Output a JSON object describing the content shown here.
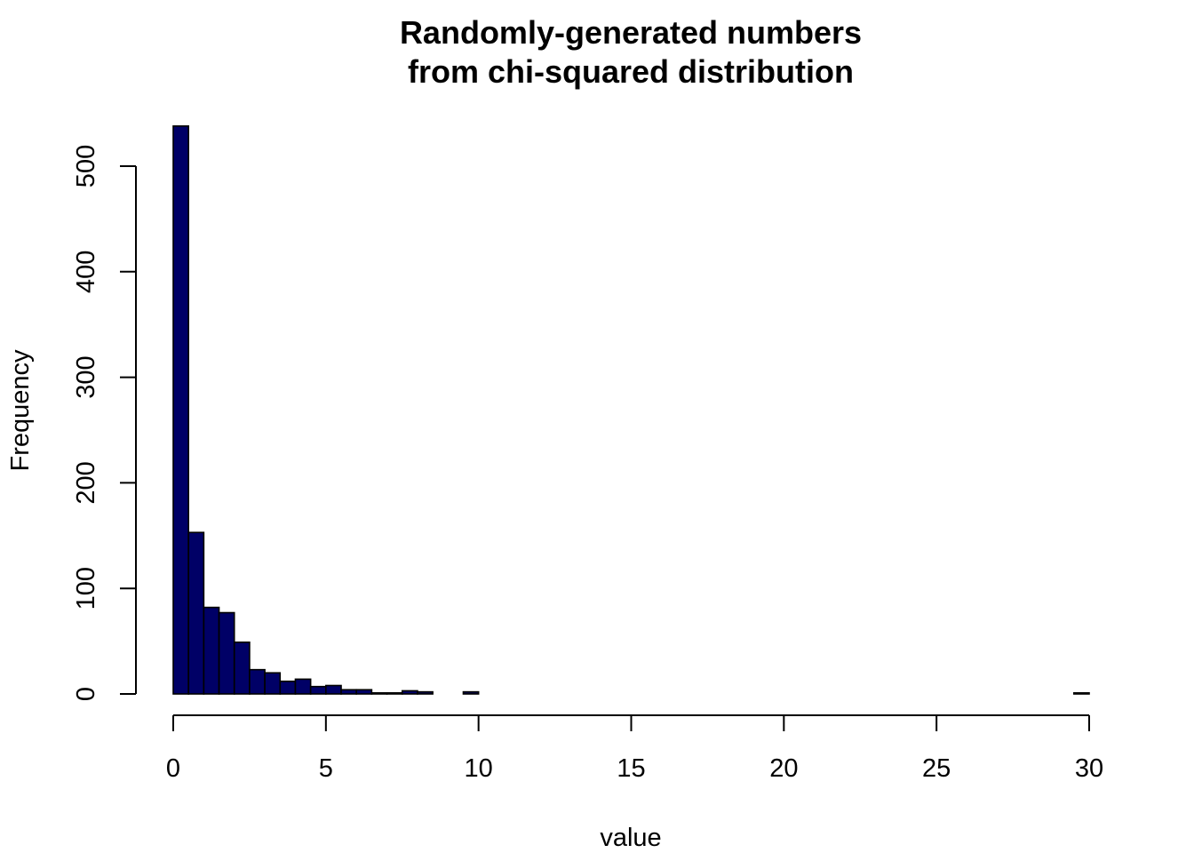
{
  "chart_data": {
    "type": "bar",
    "title_lines": [
      "Randomly-generated numbers",
      "from chi-squared distribution"
    ],
    "xlabel": "value",
    "ylabel": "Frequency",
    "xlim": [
      0,
      30
    ],
    "ylim": [
      0,
      540
    ],
    "x_ticks": [
      0,
      5,
      10,
      15,
      20,
      25,
      30
    ],
    "y_ticks": [
      0,
      100,
      200,
      300,
      400,
      500
    ],
    "bin_width": 0.5,
    "bin_starts": [
      0,
      0.5,
      1,
      1.5,
      2,
      2.5,
      3,
      3.5,
      4,
      4.5,
      5,
      5.5,
      6,
      6.5,
      7,
      7.5,
      8,
      8.5,
      9,
      9.5,
      10,
      10.5,
      11,
      11.5,
      12,
      12.5,
      13,
      13.5,
      14,
      14.5,
      15,
      15.5,
      16,
      16.5,
      17,
      17.5,
      18,
      18.5,
      19,
      19.5,
      20,
      20.5,
      21,
      21.5,
      22,
      22.5,
      23,
      23.5,
      24,
      24.5,
      25,
      25.5,
      26,
      26.5,
      27,
      27.5,
      28,
      28.5,
      29,
      29.5
    ],
    "values": [
      538,
      153,
      82,
      77,
      49,
      23,
      20,
      12,
      14,
      7,
      8,
      4,
      4,
      1,
      1,
      3,
      2,
      0,
      0,
      2,
      0,
      0,
      0,
      0,
      0,
      0,
      0,
      0,
      0,
      0,
      0,
      0,
      0,
      0,
      0,
      0,
      0,
      0,
      0,
      0,
      0,
      0,
      0,
      0,
      0,
      0,
      0,
      0,
      0,
      0,
      0,
      0,
      0,
      0,
      0,
      0,
      0,
      0,
      0,
      1
    ],
    "bar_color": "#000066",
    "grid": false,
    "legend": false
  }
}
